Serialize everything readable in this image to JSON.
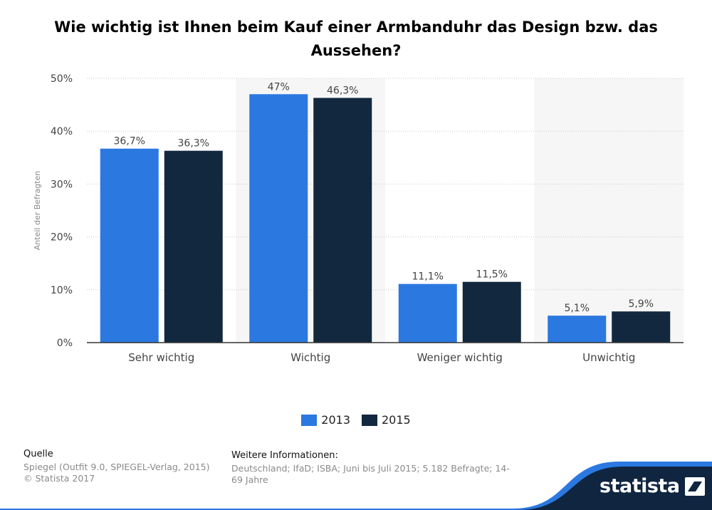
{
  "title": "Wie wichtig ist Ihnen beim Kauf einer Armbanduhr das Design bzw. das Aussehen?",
  "chart_data": {
    "type": "bar",
    "title": "Wie wichtig ist Ihnen beim Kauf einer Armbanduhr das Design bzw. das Aussehen?",
    "xlabel": "",
    "ylabel": "Anteil der Befragten",
    "ylim": [
      0,
      50
    ],
    "yticks": [
      0,
      10,
      20,
      30,
      40,
      50
    ],
    "ytick_labels": [
      "0%",
      "10%",
      "20%",
      "30%",
      "40%",
      "50%"
    ],
    "grid": true,
    "categories": [
      "Sehr wichtig",
      "Wichtig",
      "Weniger wichtig",
      "Unwichtig"
    ],
    "series": [
      {
        "name": "2013",
        "color": "#2b78e0",
        "values": [
          36.7,
          47,
          11.1,
          5.1
        ],
        "labels": [
          "36,7%",
          "47%",
          "11,1%",
          "5,1%"
        ]
      },
      {
        "name": "2015",
        "color": "#12283f",
        "values": [
          36.3,
          46.3,
          11.5,
          5.9
        ],
        "labels": [
          "36,3%",
          "46,3%",
          "11,5%",
          "5,9%"
        ]
      }
    ],
    "legend_position": "bottom"
  },
  "legend": {
    "label_2013": "2013",
    "label_2015": "2015"
  },
  "source": {
    "heading": "Quelle",
    "line1": "Spiegel (Outfit 9.0, SPIEGEL-Verlag, 2015)",
    "line2": "© Statista 2017"
  },
  "info": {
    "heading": "Weitere Informationen:",
    "text": "Deutschland; IfaD; ISBA; Juni bis Juli 2015; 5.182 Befragte; 14-69 Jahre"
  },
  "brand": {
    "name": "statista"
  }
}
